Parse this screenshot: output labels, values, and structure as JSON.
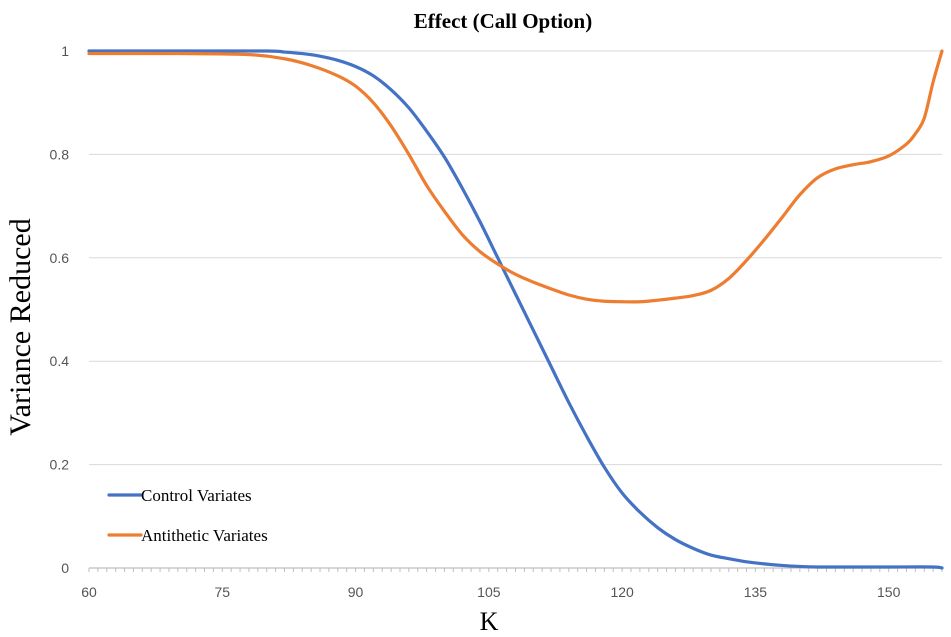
{
  "chart_data": {
    "type": "line",
    "title": "Effect (Call Option)",
    "xlabel": "K",
    "ylabel": "Variance Reduced",
    "xlim": [
      60,
      156
    ],
    "ylim": [
      0,
      1
    ],
    "x_ticks": [
      "60",
      "75",
      "90",
      "105",
      "120",
      "135",
      "150"
    ],
    "y_ticks": [
      "0",
      "0.2",
      "0.4",
      "0.6",
      "0.8",
      "1"
    ],
    "grid": true,
    "legend_position": "bottom-left",
    "series": [
      {
        "name": "Control Variates",
        "color": "#4472c4",
        "x": [
          60,
          70,
          80,
          82,
          84,
          86,
          88,
          90,
          92,
          94,
          96,
          98,
          100,
          102,
          104,
          106,
          108,
          110,
          112,
          114,
          116,
          118,
          120,
          122,
          124,
          126,
          128,
          130,
          132,
          134,
          136,
          138,
          140,
          142,
          145,
          150,
          155,
          156
        ],
        "y": [
          1.0,
          1.0,
          1.0,
          0.998,
          0.995,
          0.99,
          0.982,
          0.97,
          0.952,
          0.925,
          0.89,
          0.845,
          0.795,
          0.735,
          0.67,
          0.6,
          0.53,
          0.46,
          0.39,
          0.32,
          0.255,
          0.195,
          0.145,
          0.108,
          0.078,
          0.055,
          0.038,
          0.025,
          0.018,
          0.012,
          0.008,
          0.005,
          0.003,
          0.002,
          0.002,
          0.002,
          0.002,
          0.0
        ]
      },
      {
        "name": "Antithetic Variates",
        "color": "#ed7d31",
        "x": [
          60,
          70,
          78,
          82,
          85,
          88,
          90,
          92,
          94,
          96,
          98,
          100,
          102,
          104,
          106,
          108,
          110,
          112,
          114,
          116,
          118,
          120,
          122,
          124,
          126,
          128,
          130,
          132,
          134,
          136,
          138,
          140,
          142,
          144,
          146,
          148,
          150,
          152,
          153,
          154,
          155,
          156
        ],
        "y": [
          0.995,
          0.995,
          0.993,
          0.985,
          0.972,
          0.952,
          0.932,
          0.9,
          0.855,
          0.8,
          0.74,
          0.69,
          0.645,
          0.612,
          0.588,
          0.568,
          0.553,
          0.54,
          0.528,
          0.52,
          0.516,
          0.515,
          0.515,
          0.518,
          0.522,
          0.527,
          0.537,
          0.56,
          0.595,
          0.635,
          0.678,
          0.722,
          0.755,
          0.772,
          0.78,
          0.786,
          0.797,
          0.82,
          0.84,
          0.87,
          0.94,
          1.0
        ]
      }
    ]
  }
}
